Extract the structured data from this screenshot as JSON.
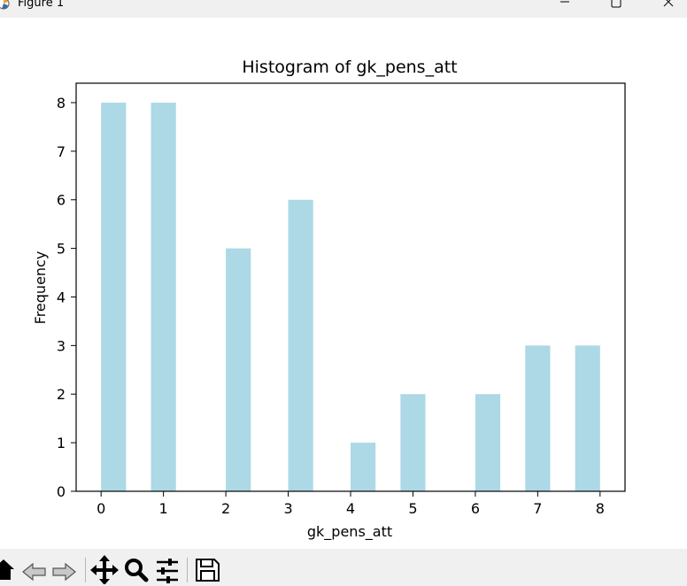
{
  "window": {
    "title": "Figure 1",
    "icons": {
      "app": "matplotlib-icon",
      "minimize": "minimize-icon",
      "maximize": "maximize-icon",
      "close": "close-icon"
    }
  },
  "toolbar": {
    "buttons": [
      {
        "name": "home-button",
        "icon": "home-icon"
      },
      {
        "name": "back-button",
        "icon": "back-arrow-icon"
      },
      {
        "name": "forward-button",
        "icon": "forward-arrow-icon"
      },
      {
        "name": "pan-button",
        "icon": "move-icon"
      },
      {
        "name": "zoom-button",
        "icon": "magnifier-icon"
      },
      {
        "name": "configure-subplots-button",
        "icon": "sliders-icon"
      },
      {
        "name": "save-button",
        "icon": "floppy-disk-icon"
      }
    ]
  },
  "chart_data": {
    "type": "bar",
    "title": "Histogram of gk_pens_att",
    "xlabel": "gk_pens_att",
    "ylabel": "Frequency",
    "bar_color": "#add8e6",
    "xlim": [
      -0.4,
      8.4
    ],
    "ylim": [
      0,
      8.4
    ],
    "xticks": [
      "0",
      "1",
      "2",
      "3",
      "4",
      "5",
      "6",
      "7",
      "8"
    ],
    "yticks": [
      "0",
      "1",
      "2",
      "3",
      "4",
      "5",
      "6",
      "7",
      "8"
    ],
    "bins": [
      {
        "x_start": 0.0,
        "x_end": 0.4,
        "count": 8
      },
      {
        "x_start": 0.8,
        "x_end": 1.2,
        "count": 8
      },
      {
        "x_start": 1.6,
        "x_end": 2.0,
        "count": 0
      },
      {
        "x_start": 2.0,
        "x_end": 2.4,
        "count": 5
      },
      {
        "x_start": 3.0,
        "x_end": 3.4,
        "count": 6
      },
      {
        "x_start": 3.6,
        "x_end": 4.0,
        "count": 0
      },
      {
        "x_start": 4.0,
        "x_end": 4.4,
        "count": 1
      },
      {
        "x_start": 4.8,
        "x_end": 5.2,
        "count": 2
      },
      {
        "x_start": 5.6,
        "x_end": 6.0,
        "count": 0
      },
      {
        "x_start": 6.0,
        "x_end": 6.4,
        "count": 2
      },
      {
        "x_start": 6.8,
        "x_end": 7.2,
        "count": 3
      },
      {
        "x_start": 7.6,
        "x_end": 8.0,
        "count": 3
      }
    ],
    "grid": false,
    "legend": false
  }
}
